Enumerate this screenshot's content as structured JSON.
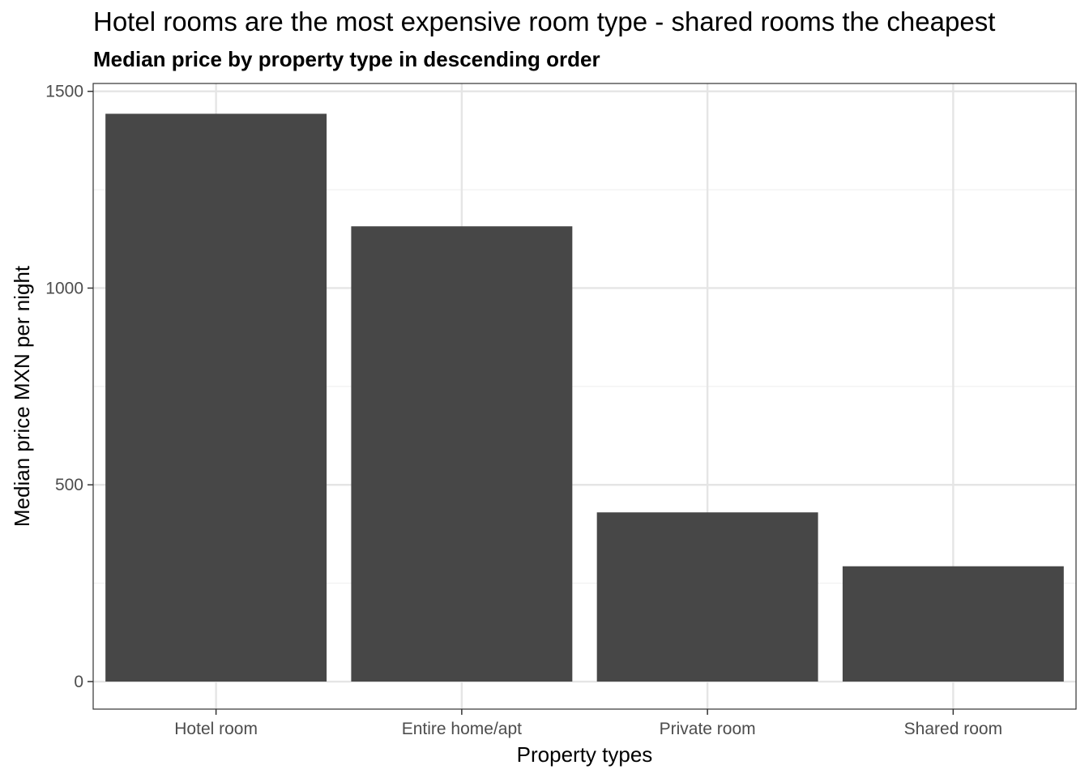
{
  "chart_data": {
    "type": "bar",
    "title": "Hotel rooms are the most expensive room type - shared rooms the cheapest",
    "subtitle": "Median price by property type in descending order",
    "xlabel": "Property types",
    "ylabel": "Median price MXN per night",
    "categories": [
      "Hotel room",
      "Entire home/apt",
      "Private room",
      "Shared room"
    ],
    "values": [
      1443,
      1157,
      430,
      293
    ],
    "ylim": [
      -70,
      1520
    ],
    "yticks": [
      0,
      500,
      1000,
      1500
    ],
    "grid": true,
    "legend": "none",
    "colors": {
      "bar": "#474747",
      "grid_major": "#e5e5e5",
      "grid_minor": "#f1f1f1",
      "panel_border": "#333333",
      "tick_text": "#4d4d4d"
    }
  }
}
